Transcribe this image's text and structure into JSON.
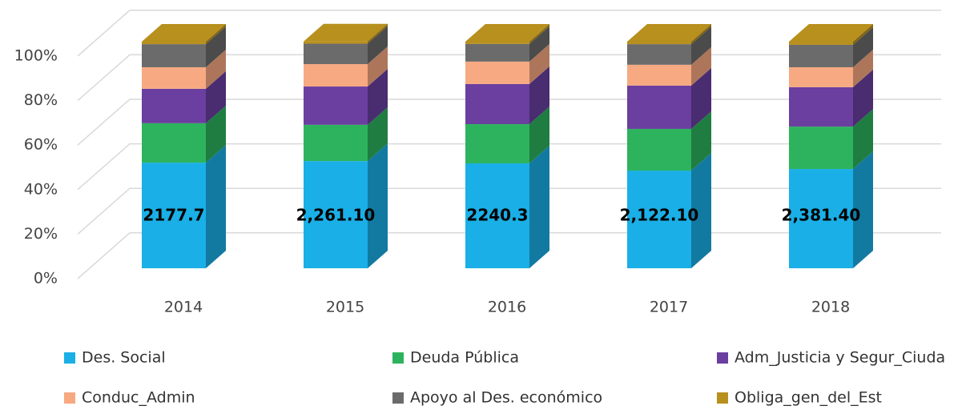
{
  "chart_data": {
    "type": "bar3d_stacked_percent",
    "categories": [
      "2014",
      "2015",
      "2016",
      "2017",
      "2018"
    ],
    "series": [
      {
        "name": "Des. Social",
        "color": "#1aafe6",
        "values": [
          46.6,
          47.3,
          46.3,
          43.1,
          43.8
        ]
      },
      {
        "name": "Deuda Pública",
        "color": "#2db35d",
        "values": [
          17.4,
          16.0,
          17.3,
          18.4,
          18.7
        ]
      },
      {
        "name": "Adm_Justicia y Segur_Ciuda",
        "color": "#6a3fa0",
        "values": [
          15.2,
          16.9,
          17.7,
          19.1,
          17.4
        ]
      },
      {
        "name": "Conduc_Admin",
        "color": "#f7a982",
        "values": [
          9.5,
          9.9,
          9.9,
          9.2,
          8.8
        ]
      },
      {
        "name": "Apoyo al Des. económico",
        "color": "#6b6b6b",
        "values": [
          10.2,
          9.0,
          7.8,
          9.1,
          9.9
        ]
      },
      {
        "name": "Obliga_gen_del_Est",
        "color": "#b8901e",
        "values": [
          1.1,
          1.0,
          1.0,
          1.1,
          1.4
        ]
      }
    ],
    "annotations": [
      "2177.7",
      "2,261.10",
      "2240.3",
      "2,122.10",
      "2,381.40"
    ],
    "ylim": [
      0,
      100
    ],
    "yticks": [
      {
        "value": 0,
        "label": "0%"
      },
      {
        "value": 20,
        "label": "20%"
      },
      {
        "value": 40,
        "label": "40%"
      },
      {
        "value": 60,
        "label": "60%"
      },
      {
        "value": 80,
        "label": "80%"
      },
      {
        "value": 100,
        "label": "100%"
      }
    ],
    "grid": true
  }
}
